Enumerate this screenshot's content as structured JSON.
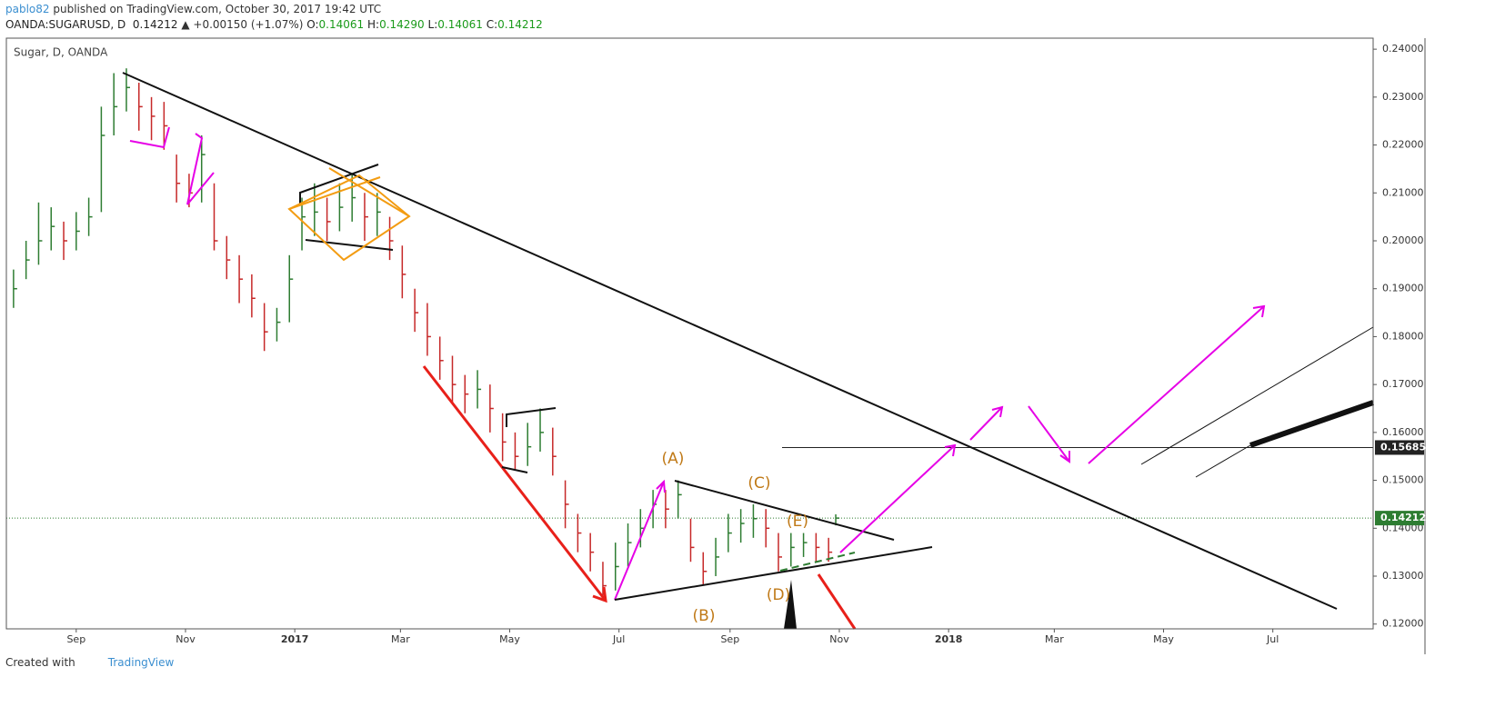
{
  "header": {
    "publisher": "pablo82",
    "published": "published on TradingView.com, October 30, 2017 19:42 UTC",
    "symbol": "OANDA:SUGARUSD, D",
    "price": "0.14212",
    "change": "▲ +0.00150 (+1.07%)",
    "o_label": "O:",
    "o": "0.14061",
    "h_label": "H:",
    "h": "0.14290",
    "l_label": "L:",
    "l": "0.14061",
    "c_label": "C:",
    "c": "0.14212"
  },
  "footer": {
    "created": "Created with",
    "brand": "TradingView"
  },
  "chart_data": {
    "type": "ohlc",
    "title": "Sugar, D, OANDA",
    "x": [
      -35,
      -28,
      -21,
      -14,
      -7,
      0,
      7,
      14,
      21,
      28,
      35,
      42,
      49,
      56,
      63,
      70,
      77,
      84,
      91,
      98,
      105,
      112,
      119,
      126,
      133,
      140,
      147,
      154,
      161,
      168,
      175,
      182,
      189,
      196,
      203,
      210,
      217,
      224,
      231,
      238,
      245,
      252,
      259,
      266,
      273,
      280,
      287,
      294,
      301,
      308,
      315,
      322,
      329,
      336,
      343,
      350,
      357,
      364,
      371,
      378,
      385,
      392,
      399,
      406,
      413,
      420,
      424
    ],
    "close": [
      0.19,
      0.196,
      0.2,
      0.203,
      0.2,
      0.202,
      0.205,
      0.222,
      0.228,
      0.232,
      0.228,
      0.226,
      0.224,
      0.212,
      0.21,
      0.218,
      0.2,
      0.196,
      0.192,
      0.188,
      0.181,
      0.183,
      0.192,
      0.205,
      0.206,
      0.204,
      0.207,
      0.209,
      0.205,
      0.206,
      0.2,
      0.193,
      0.185,
      0.18,
      0.175,
      0.17,
      0.168,
      0.169,
      0.165,
      0.158,
      0.155,
      0.157,
      0.16,
      0.155,
      0.145,
      0.139,
      0.135,
      0.128,
      0.132,
      0.137,
      0.14,
      0.145,
      0.144,
      0.147,
      0.136,
      0.131,
      0.134,
      0.139,
      0.141,
      0.142,
      0.14,
      0.134,
      0.136,
      0.137,
      0.136,
      0.135,
      0.14212
    ],
    "high": [
      0.194,
      0.2,
      0.208,
      0.207,
      0.204,
      0.206,
      0.209,
      0.228,
      0.235,
      0.236,
      0.233,
      0.23,
      0.229,
      0.218,
      0.214,
      0.222,
      0.212,
      0.201,
      0.197,
      0.193,
      0.187,
      0.186,
      0.197,
      0.209,
      0.212,
      0.209,
      0.212,
      0.214,
      0.21,
      0.21,
      0.205,
      0.199,
      0.19,
      0.187,
      0.18,
      0.176,
      0.172,
      0.173,
      0.17,
      0.164,
      0.16,
      0.162,
      0.165,
      0.161,
      0.15,
      0.143,
      0.139,
      0.133,
      0.137,
      0.141,
      0.144,
      0.148,
      0.148,
      0.15,
      0.142,
      0.135,
      0.138,
      0.143,
      0.144,
      0.145,
      0.144,
      0.139,
      0.139,
      0.139,
      0.139,
      0.138,
      0.1429
    ],
    "low": [
      0.186,
      0.192,
      0.195,
      0.198,
      0.196,
      0.198,
      0.201,
      0.206,
      0.222,
      0.227,
      0.223,
      0.221,
      0.219,
      0.208,
      0.207,
      0.208,
      0.198,
      0.192,
      0.187,
      0.184,
      0.177,
      0.179,
      0.183,
      0.198,
      0.201,
      0.2,
      0.202,
      0.204,
      0.2,
      0.201,
      0.196,
      0.188,
      0.181,
      0.176,
      0.171,
      0.166,
      0.164,
      0.165,
      0.16,
      0.154,
      0.152,
      0.153,
      0.156,
      0.151,
      0.14,
      0.135,
      0.131,
      0.125,
      0.127,
      0.132,
      0.136,
      0.14,
      0.14,
      0.142,
      0.133,
      0.128,
      0.13,
      0.135,
      0.137,
      0.138,
      0.136,
      0.131,
      0.132,
      0.134,
      0.133,
      0.133,
      0.1406
    ],
    "up_color": "#2e7d32",
    "down_color": "#c62828",
    "xlim": [
      -39,
      724
    ],
    "xticks": [
      {
        "value": 0,
        "label": "Sep"
      },
      {
        "value": 61,
        "label": "Nov"
      },
      {
        "value": 122,
        "label": "2017"
      },
      {
        "value": 181,
        "label": "Mar"
      },
      {
        "value": 242,
        "label": "May"
      },
      {
        "value": 303,
        "label": "Jul"
      },
      {
        "value": 365,
        "label": "Sep"
      },
      {
        "value": 426,
        "label": "Nov"
      },
      {
        "value": 487,
        "label": "2018"
      },
      {
        "value": 546,
        "label": "Mar"
      },
      {
        "value": 607,
        "label": "May"
      },
      {
        "value": 668,
        "label": "Jul"
      }
    ],
    "ylim": [
      0.119,
      0.2423
    ],
    "yticks": [
      {
        "value": 0.12,
        "label": "0.12000"
      },
      {
        "value": 0.13,
        "label": "0.13000"
      },
      {
        "value": 0.14,
        "label": "0.14000"
      },
      {
        "value": 0.15,
        "label": "0.15000"
      },
      {
        "value": 0.16,
        "label": "0.16000"
      },
      {
        "value": 0.17,
        "label": "0.17000"
      },
      {
        "value": 0.18,
        "label": "0.18000"
      },
      {
        "value": 0.19,
        "label": "0.19000"
      },
      {
        "value": 0.2,
        "label": "0.20000"
      },
      {
        "value": 0.21,
        "label": "0.21000"
      },
      {
        "value": 0.22,
        "label": "0.22000"
      },
      {
        "value": 0.23,
        "label": "0.23000"
      },
      {
        "value": 0.24,
        "label": "0.24000"
      }
    ],
    "price_lines": [
      {
        "value": 0.15685,
        "color": "#222"
      },
      {
        "value": 0.14212,
        "color": "#2e7d32"
      }
    ],
    "annotations": [
      "(A)",
      "(B)",
      "(C)",
      "(D)",
      "(E)"
    ]
  }
}
